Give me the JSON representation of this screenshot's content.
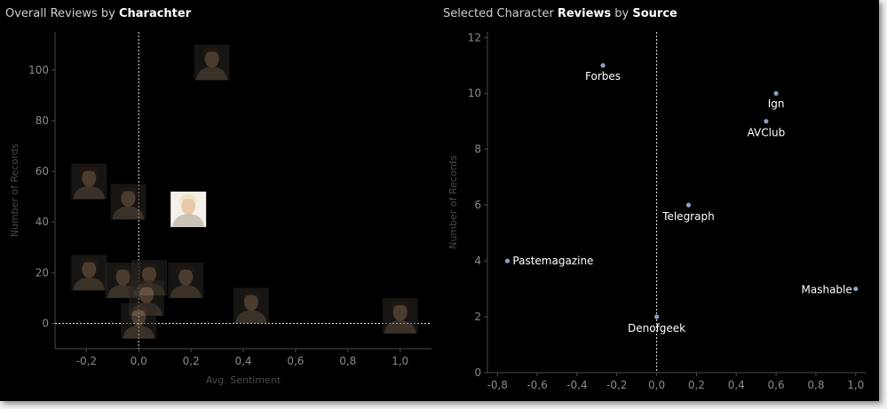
{
  "chart_data": [
    {
      "type": "scatter",
      "title_prefix": "Overall Reviews by ",
      "title_bold": "Charachter",
      "xlabel": "Avg. Sentiment",
      "ylabel": "Number of Records",
      "xlim": [
        -0.32,
        1.12
      ],
      "ylim": [
        -10,
        115
      ],
      "x_ticks": [
        "-0,2",
        "0,0",
        "0,2",
        "0,4",
        "0,6",
        "0,8",
        "1,0"
      ],
      "x_tick_values": [
        -0.2,
        0.0,
        0.2,
        0.4,
        0.6,
        0.8,
        1.0
      ],
      "y_ticks": [
        "0",
        "20",
        "40",
        "60",
        "80",
        "100"
      ],
      "y_tick_values": [
        0,
        20,
        40,
        60,
        80,
        100
      ],
      "reference_lines": {
        "x": 0,
        "y": 0
      },
      "marker": "character-portrait",
      "points": [
        {
          "x": 0.28,
          "y": 103,
          "highlight": false
        },
        {
          "x": -0.19,
          "y": 56,
          "highlight": false
        },
        {
          "x": -0.04,
          "y": 48,
          "highlight": false
        },
        {
          "x": 0.19,
          "y": 45,
          "highlight": true
        },
        {
          "x": -0.19,
          "y": 20,
          "highlight": false
        },
        {
          "x": -0.06,
          "y": 17,
          "highlight": false
        },
        {
          "x": 0.04,
          "y": 18,
          "highlight": false
        },
        {
          "x": 0.18,
          "y": 17,
          "highlight": false
        },
        {
          "x": 0.03,
          "y": 10,
          "highlight": false
        },
        {
          "x": 0.43,
          "y": 7,
          "highlight": false
        },
        {
          "x": 0.0,
          "y": 1,
          "highlight": false
        },
        {
          "x": 1.0,
          "y": 3,
          "highlight": false
        }
      ]
    },
    {
      "type": "scatter",
      "title_prefix": "Selected Character ",
      "title_bold": "Reviews",
      "title_middle": " by ",
      "title_bold2": "Source",
      "xlabel": "",
      "ylabel": "Number of Records",
      "xlim": [
        -0.85,
        1.05
      ],
      "ylim": [
        0,
        12.2
      ],
      "x_ticks": [
        "-0,8",
        "-0,6",
        "-0,4",
        "-0,2",
        "0,0",
        "0,2",
        "0,4",
        "0,6",
        "0,8",
        "1,0"
      ],
      "x_tick_values": [
        -0.8,
        -0.6,
        -0.4,
        -0.2,
        0.0,
        0.2,
        0.4,
        0.6,
        0.8,
        1.0
      ],
      "y_ticks": [
        "0",
        "2",
        "4",
        "6",
        "8",
        "10",
        "12"
      ],
      "y_tick_values": [
        0,
        2,
        4,
        6,
        8,
        10,
        12
      ],
      "reference_lines": {
        "x": 0
      },
      "point_color": "#8aa0c8",
      "points": [
        {
          "label": "Forbes",
          "x": -0.27,
          "y": 11
        },
        {
          "label": "Ign",
          "x": 0.6,
          "y": 10
        },
        {
          "label": "AVClub",
          "x": 0.55,
          "y": 9
        },
        {
          "label": "Telegraph",
          "x": 0.16,
          "y": 6
        },
        {
          "label": "Pastemagazine",
          "x": -0.75,
          "y": 4
        },
        {
          "label": "Mashable",
          "x": 1.0,
          "y": 3
        },
        {
          "label": "Denofgeek",
          "x": 0.0,
          "y": 2
        }
      ]
    }
  ]
}
